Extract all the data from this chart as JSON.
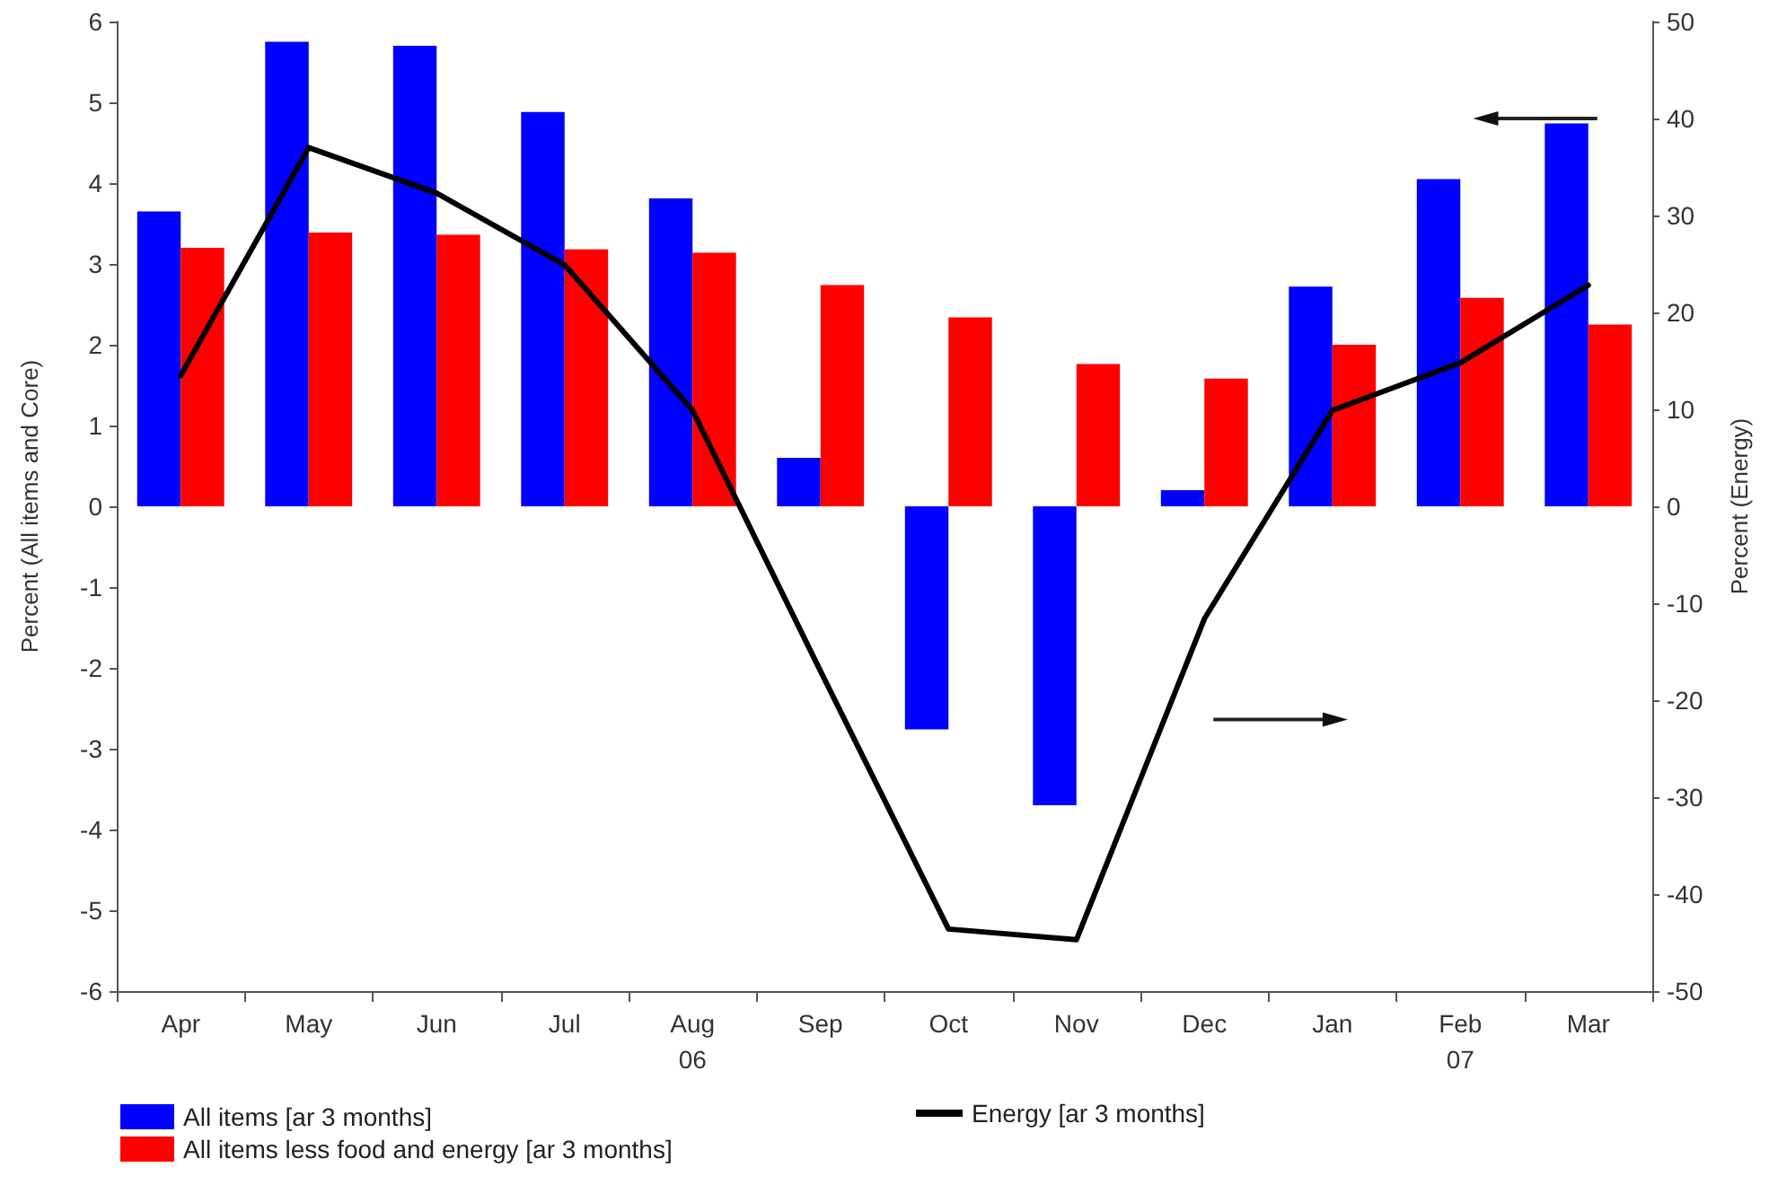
{
  "chart_data": {
    "type": "bar",
    "categories": [
      "Apr",
      "May",
      "Jun",
      "Jul",
      "Aug\n06",
      "Sep",
      "Oct",
      "Nov",
      "Dec",
      "Jan",
      "Feb\n07",
      "Mar"
    ],
    "series": [
      {
        "name": "All items [ar 3 months]",
        "color": "#0000ff",
        "values": [
          3.65,
          5.75,
          5.7,
          4.88,
          3.81,
          0.6,
          -2.76,
          -3.7,
          0.2,
          2.72,
          4.05,
          4.74
        ]
      },
      {
        "name": "All items less food and energy [ar 3 months]",
        "color": "#ff0000",
        "values": [
          3.2,
          3.39,
          3.36,
          3.18,
          3.14,
          2.74,
          2.34,
          1.76,
          1.58,
          2.0,
          2.58,
          2.25
        ]
      },
      {
        "name": "Energy [ar 3 months]",
        "type": "line",
        "axis": "y2",
        "color": "#000000",
        "values": [
          13.5,
          37,
          32.3,
          24.9,
          9.9,
          -17,
          -43.6,
          -44.7,
          -11.6,
          9.9,
          14.8,
          22.8
        ]
      }
    ],
    "ylabel": "Percent (All items and Core)",
    "y2label": "Percent (Energy)",
    "ylim": [
      -6,
      6
    ],
    "yticks": [
      -6,
      -5,
      -4,
      -3,
      -2,
      -1,
      0,
      1,
      2,
      3,
      4,
      5,
      6
    ],
    "y2lim": [
      -50,
      50
    ],
    "y2ticks": [
      -50,
      -40,
      -30,
      -20,
      -10,
      0,
      10,
      20,
      30,
      40,
      50
    ],
    "grid": false,
    "legend": "bottom left",
    "marker": "none",
    "line_style": "solid"
  }
}
